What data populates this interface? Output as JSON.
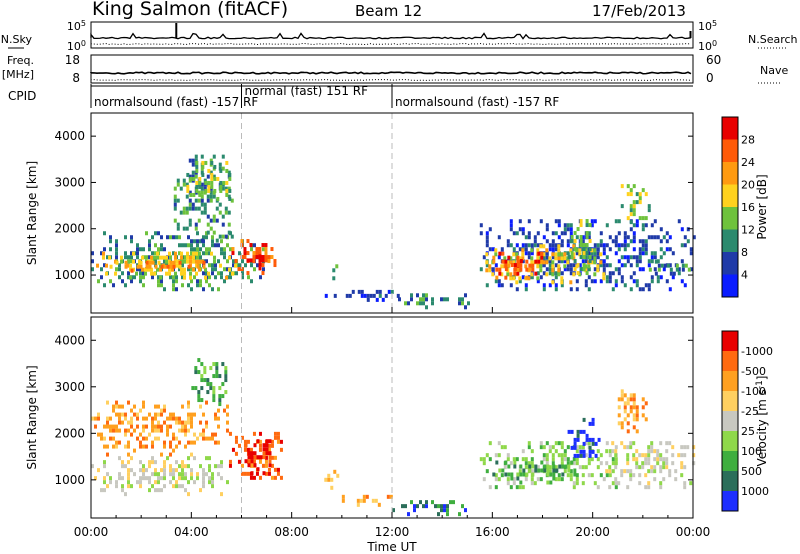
{
  "header": {
    "station": "King Salmon (fitACF)",
    "beam": "Beam 12",
    "date": "17/Feb/2013"
  },
  "chart_data": [
    {
      "type": "line",
      "panel": "noise",
      "left_label": "N.Sky",
      "right_label": "N.Search",
      "left_ticks": [
        "10^5",
        "10^0"
      ],
      "right_ticks": [
        "10^5",
        "10^0"
      ]
    },
    {
      "type": "line",
      "panel": "frequency",
      "left_label": "Freq.",
      "left_unit": "[MHz]",
      "right_label": "Nave",
      "left_ticks": [
        "18",
        "8"
      ],
      "right_ticks": [
        "60",
        "0"
      ]
    },
    {
      "type": "table",
      "panel": "cpid",
      "label": "CPID",
      "segments": [
        {
          "text": "normalsound (fast) -157 RF",
          "start": 0,
          "end": 6
        },
        {
          "text": "normal (fast) 151 RF",
          "start": 6,
          "end": 12
        },
        {
          "text": "normalsound (fast) -157 RF",
          "start": 12,
          "end": 24
        }
      ]
    },
    {
      "type": "heatmap",
      "panel": "power",
      "ylabel": "Slant Range [km]",
      "ylim": [
        180,
        4500
      ],
      "yticks": [
        1000,
        2000,
        3000,
        4000
      ],
      "colorbar": {
        "label": "Power [dB]",
        "ticks": [
          "4",
          "8",
          "12",
          "16",
          "20",
          "24",
          "28"
        ],
        "colors": [
          "#0a1cff",
          "#1f3aa8",
          "#2b8a6e",
          "#6ec23c",
          "#ffd21e",
          "#ff9a10",
          "#ff5a08",
          "#e80000"
        ]
      },
      "regions": [
        {
          "t0": 0.0,
          "t1": 6.9,
          "r0": 650,
          "r1": 1900,
          "level": 2
        },
        {
          "t0": 0.2,
          "t1": 5.8,
          "r0": 900,
          "r1": 1500,
          "level": 4
        },
        {
          "t0": 0.5,
          "t1": 4.5,
          "r0": 1050,
          "r1": 1300,
          "level": 5
        },
        {
          "t0": 5.6,
          "t1": 7.5,
          "r0": 1000,
          "r1": 1700,
          "level": 6
        },
        {
          "t0": 6.2,
          "t1": 7.2,
          "r0": 1100,
          "r1": 1450,
          "level": 7
        },
        {
          "t0": 3.3,
          "t1": 5.6,
          "r0": 1700,
          "r1": 3550,
          "level": 2
        },
        {
          "t0": 3.8,
          "t1": 5.5,
          "r0": 2600,
          "r1": 3400,
          "level": 3
        },
        {
          "t0": 9.5,
          "t1": 9.8,
          "r0": 800,
          "r1": 1200,
          "level": 3
        },
        {
          "t0": 9.2,
          "t1": 12.2,
          "r0": 420,
          "r1": 620,
          "level": 1
        },
        {
          "t0": 12.0,
          "t1": 15.2,
          "r0": 260,
          "r1": 600,
          "level": 2
        },
        {
          "t0": 15.5,
          "t1": 24.0,
          "r0": 650,
          "r1": 2200,
          "level": 1
        },
        {
          "t0": 15.6,
          "t1": 20.5,
          "r0": 800,
          "r1": 1650,
          "level": 4
        },
        {
          "t0": 16.0,
          "t1": 18.3,
          "r0": 900,
          "r1": 1500,
          "level": 6
        },
        {
          "t0": 16.5,
          "t1": 17.5,
          "r0": 1000,
          "r1": 1350,
          "level": 7
        },
        {
          "t0": 19.0,
          "t1": 20.0,
          "r0": 1000,
          "r1": 2200,
          "level": 3
        },
        {
          "t0": 21.0,
          "t1": 22.3,
          "r0": 2100,
          "r1": 2900,
          "level": 3
        },
        {
          "t0": 22.0,
          "t1": 24.0,
          "r0": 900,
          "r1": 1300,
          "level": 2
        }
      ]
    },
    {
      "type": "heatmap",
      "panel": "velocity",
      "ylabel": "Slant Range [km]",
      "ylim": [
        180,
        4500
      ],
      "yticks": [
        1000,
        2000,
        3000,
        4000
      ],
      "xlabel": "Time UT",
      "xticks": [
        "00:00",
        "04:00",
        "08:00",
        "12:00",
        "16:00",
        "20:00",
        "00:00"
      ],
      "colorbar": {
        "label": "Velocity [m s^-1]",
        "ticks": [
          "1000",
          "500",
          "100",
          "25",
          "-25",
          "-100",
          "-500",
          "-1000"
        ],
        "colors": [
          "#1c2eff",
          "#2b6e5a",
          "#3fae3f",
          "#8fd84a",
          "#c8c8c0",
          "#ffd060",
          "#ffa020",
          "#ff6a10",
          "#e80000"
        ]
      },
      "regions": [
        {
          "t0": 0.0,
          "t1": 5.5,
          "r0": 650,
          "r1": 1500,
          "level": 4
        },
        {
          "t0": 0.0,
          "t1": 5.5,
          "r0": 1500,
          "r1": 2700,
          "level": 6
        },
        {
          "t0": 4.0,
          "t1": 5.5,
          "r0": 2500,
          "r1": 3550,
          "level": 2
        },
        {
          "t0": 5.5,
          "t1": 7.6,
          "r0": 1000,
          "r1": 2000,
          "level": 7
        },
        {
          "t0": 6.0,
          "t1": 7.2,
          "r0": 1100,
          "r1": 1800,
          "level": 8
        },
        {
          "t0": 9.3,
          "t1": 9.8,
          "r0": 700,
          "r1": 1200,
          "level": 5
        },
        {
          "t0": 10.0,
          "t1": 12.0,
          "r0": 420,
          "r1": 620,
          "level": 6
        },
        {
          "t0": 12.0,
          "t1": 15.0,
          "r0": 220,
          "r1": 550,
          "level": 1
        },
        {
          "t0": 15.5,
          "t1": 21.0,
          "r0": 800,
          "r1": 1800,
          "level": 3
        },
        {
          "t0": 16.0,
          "t1": 19.5,
          "r0": 900,
          "r1": 1400,
          "level": 2
        },
        {
          "t0": 19.0,
          "t1": 20.3,
          "r0": 1300,
          "r1": 2300,
          "level": 0
        },
        {
          "t0": 20.5,
          "t1": 24.0,
          "r0": 800,
          "r1": 1800,
          "level": 4
        },
        {
          "t0": 21.0,
          "t1": 22.3,
          "r0": 2000,
          "r1": 2900,
          "level": 6
        }
      ]
    }
  ]
}
